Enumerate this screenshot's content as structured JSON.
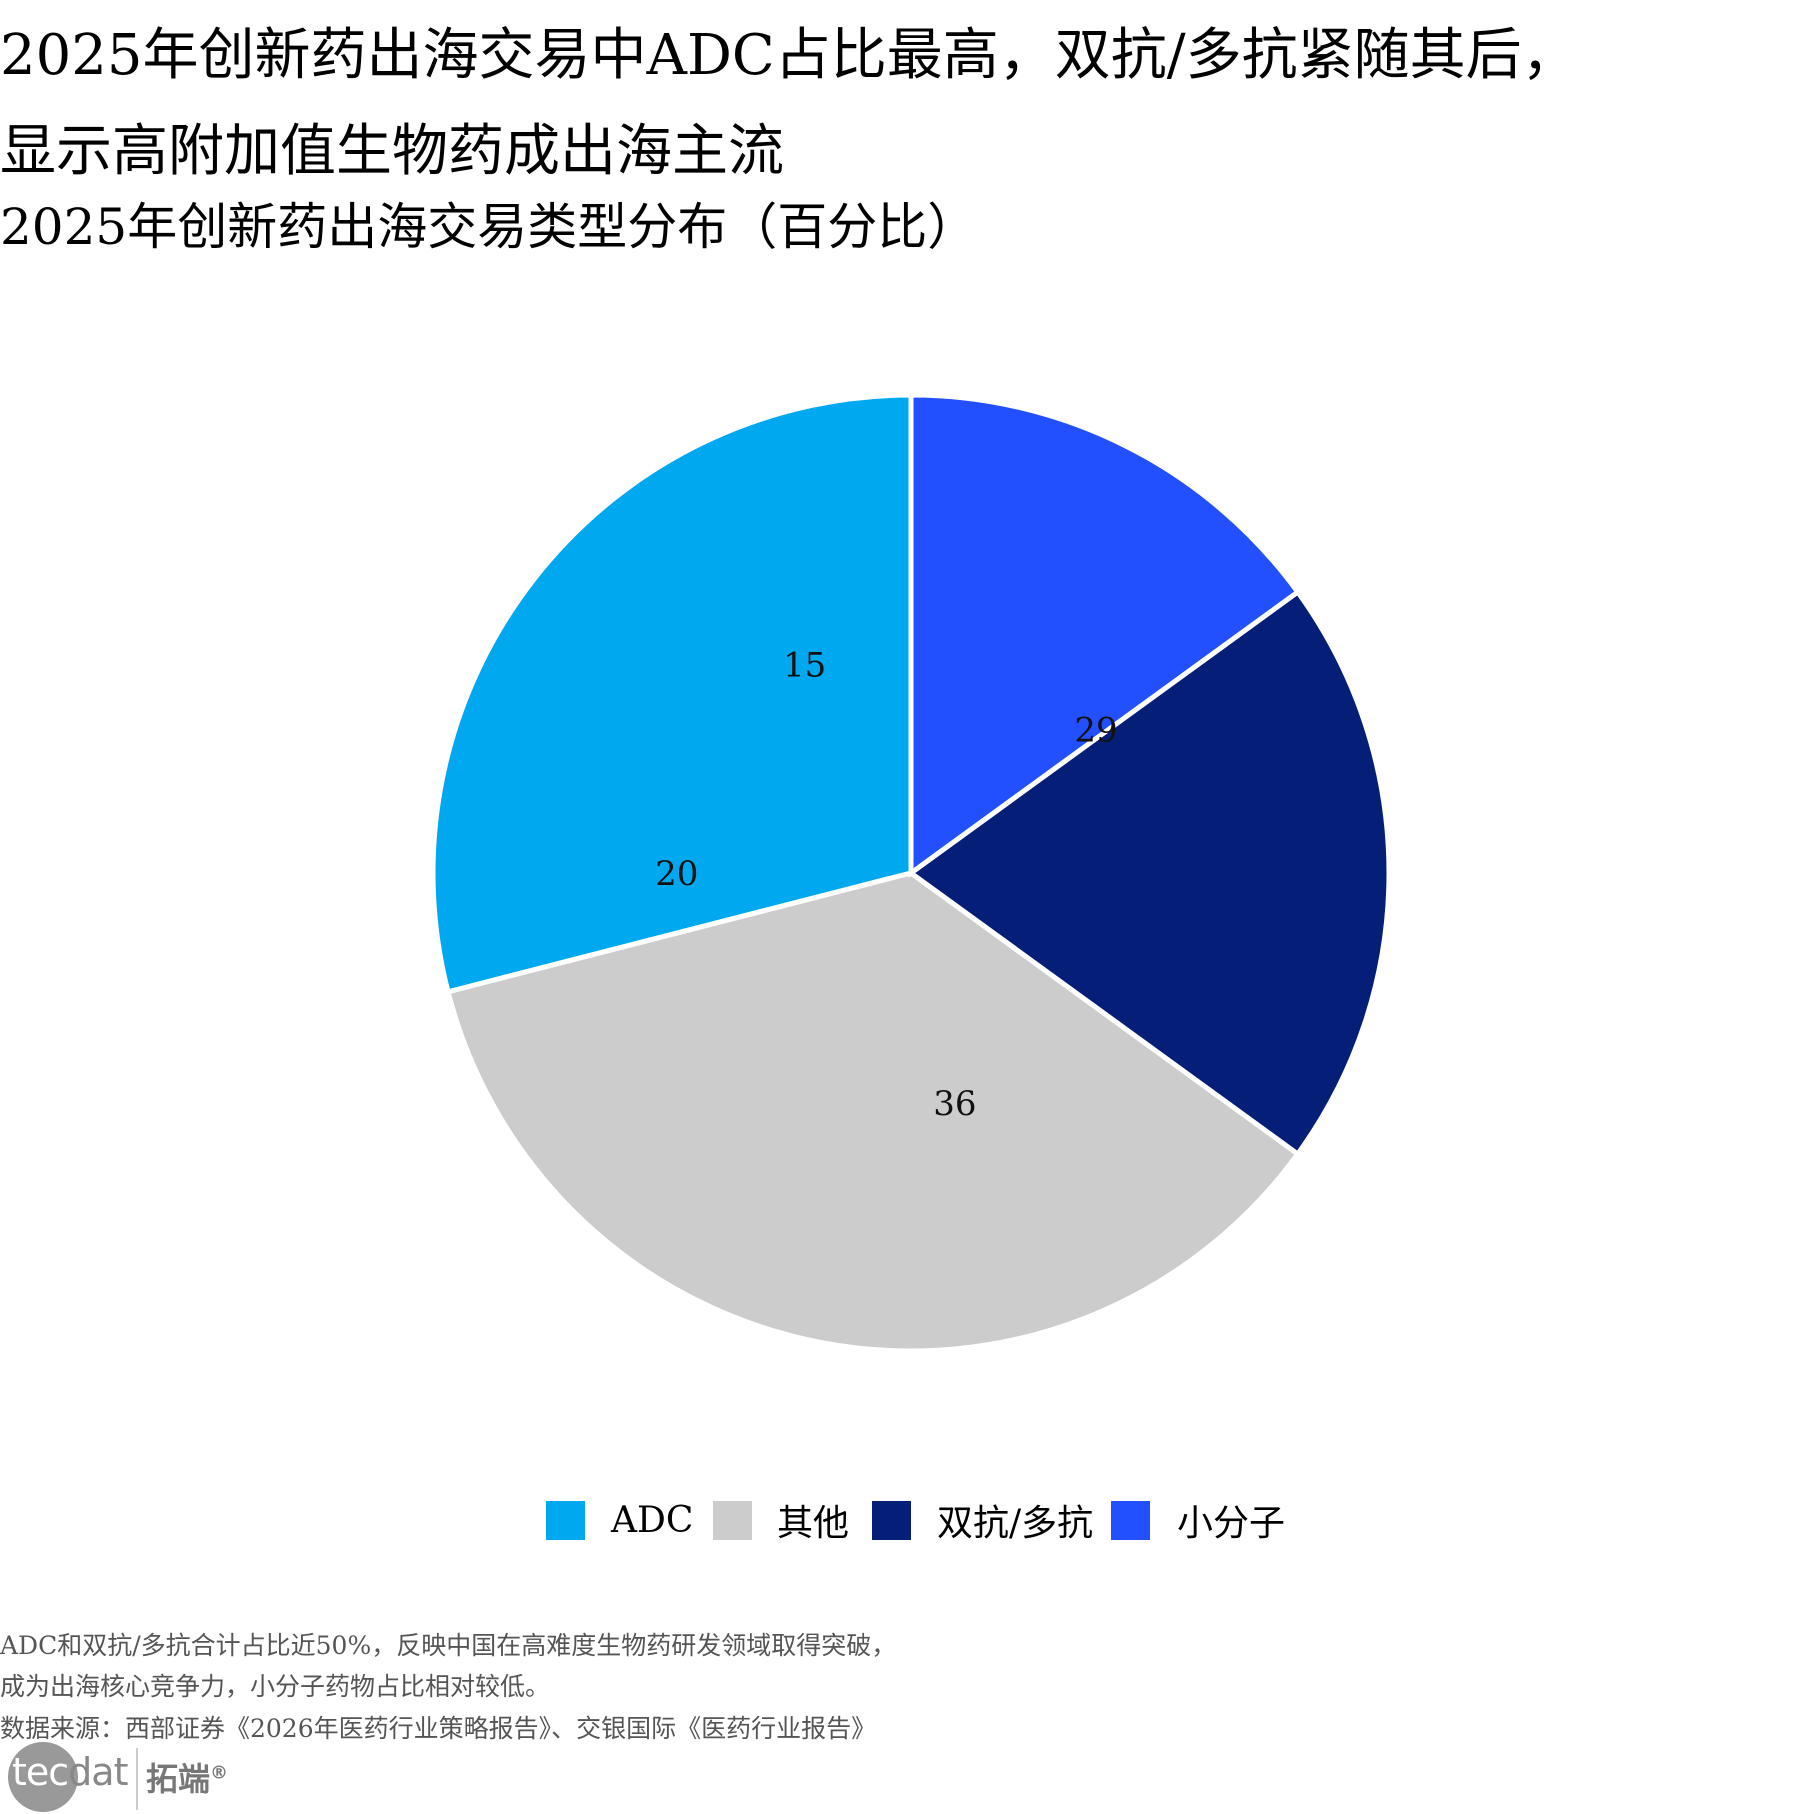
{
  "title_lines": [
    "2025年创新药出海交易中ADC占比最高，双抗/多抗紧随其后，",
    "显示高附加值生物药成出海主流"
  ],
  "subtitle": "2025年创新药出海交易类型分布（百分比）",
  "chart_data": {
    "type": "pie",
    "categories": [
      "ADC",
      "其他",
      "双抗/多抗",
      "小分子"
    ],
    "values": [
      29,
      36,
      20,
      15
    ],
    "colors": [
      "#00A8F0",
      "#CCCCCC",
      "#051E78",
      "#2350FF"
    ],
    "data_labels": [
      "29",
      "36",
      "20",
      "15"
    ],
    "legend_position": "bottom",
    "direction": "counterclockwise from top"
  },
  "footnotes": [
    "ADC和双抗/多抗合计占比近50%，反映中国在高难度生物药研发领域取得突破，",
    "成为出海核心竞争力，小分子药物占比相对较低。",
    "数据来源：西部证券《2026年医药行业策略报告》、交银国际《医药行业报告》"
  ],
  "logo": {
    "text_white": "tec",
    "text_gray": "dat",
    "cn": "拓端",
    "mark": "®"
  }
}
